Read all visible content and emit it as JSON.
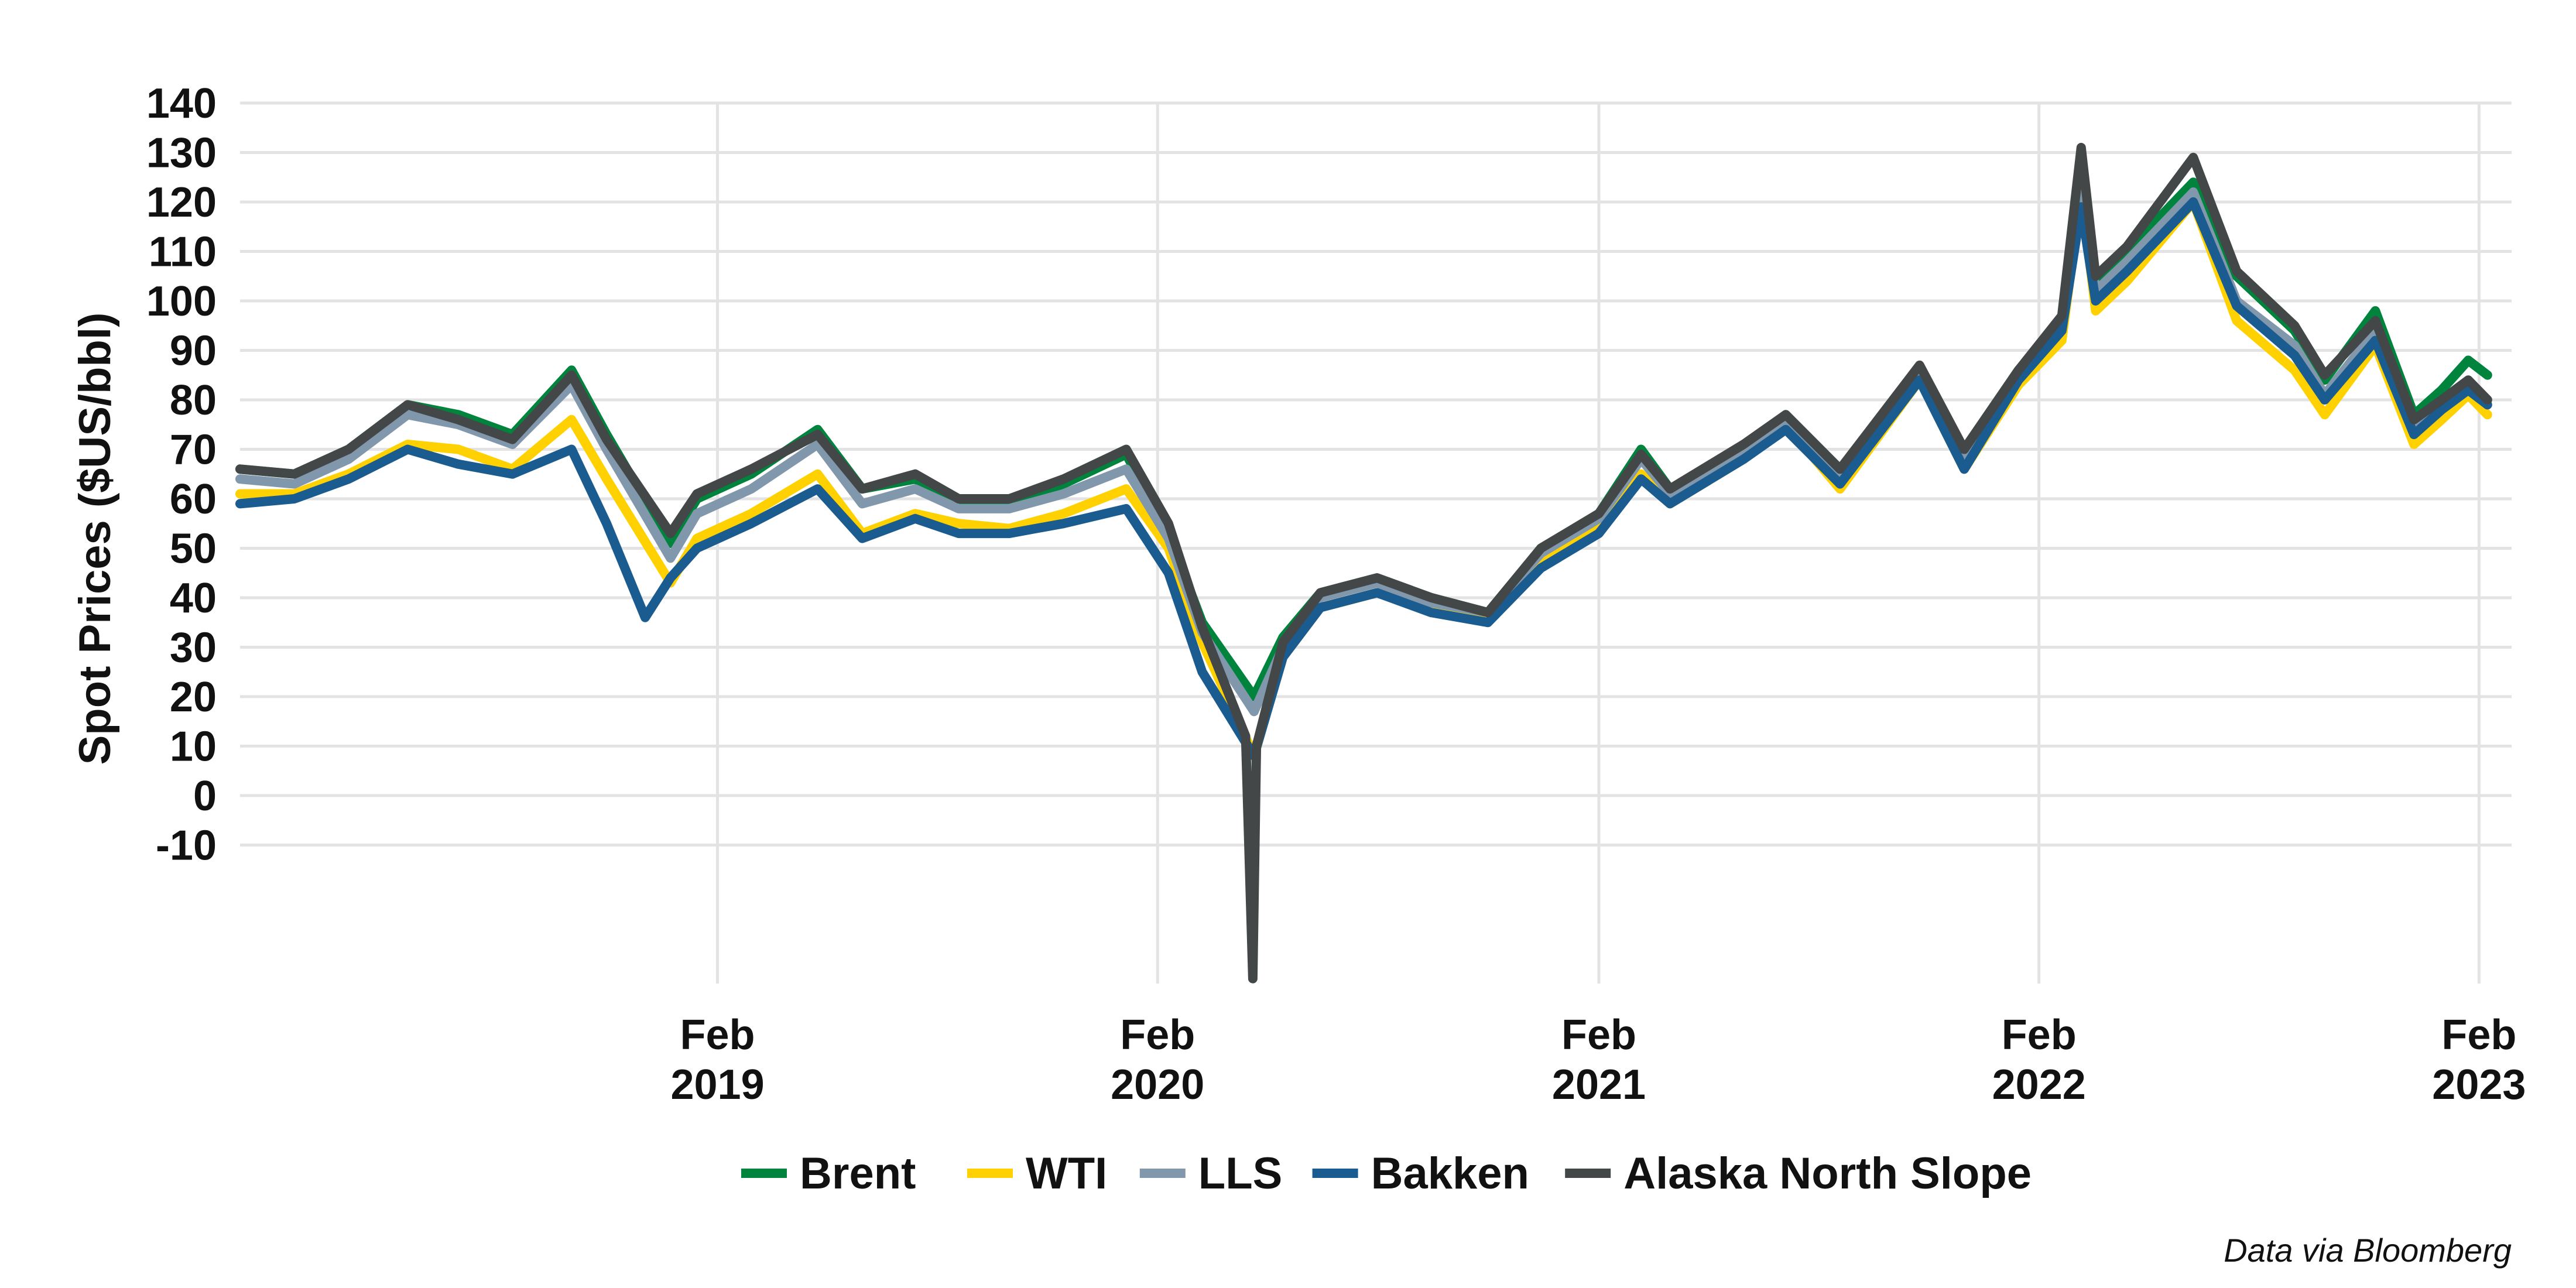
{
  "chart_data": {
    "type": "line",
    "title": "",
    "ylabel": "Spot Prices ($US/bbl)",
    "xlabel": "",
    "ylim": [
      -38,
      140
    ],
    "y_ticks": [
      140,
      130,
      120,
      110,
      100,
      90,
      80,
      70,
      60,
      50,
      40,
      30,
      20,
      10,
      0,
      -10
    ],
    "x_range": [
      "2018-01-01",
      "2023-02-28"
    ],
    "x_ticks": [
      {
        "date": "2019-02-01",
        "label": [
          "Feb",
          "2019"
        ]
      },
      {
        "date": "2020-02-01",
        "label": [
          "Feb",
          "2020"
        ]
      },
      {
        "date": "2021-02-01",
        "label": [
          "Feb",
          "2021"
        ]
      },
      {
        "date": "2022-02-01",
        "label": [
          "Feb",
          "2022"
        ]
      },
      {
        "date": "2023-02-01",
        "label": [
          "Feb",
          "2023"
        ]
      }
    ],
    "grid": true,
    "legend_position": "bottom",
    "caption": "Data via Bloomberg",
    "series": [
      {
        "name": "Brent",
        "color": "#00843D",
        "points": [
          [
            "2018-01-01",
            66
          ],
          [
            "2018-02-15",
            65
          ],
          [
            "2018-04-01",
            70
          ],
          [
            "2018-05-20",
            79
          ],
          [
            "2018-07-01",
            77
          ],
          [
            "2018-08-15",
            73
          ],
          [
            "2018-10-03",
            86
          ],
          [
            "2018-11-01",
            73
          ],
          [
            "2018-12-24",
            51
          ],
          [
            "2019-01-15",
            60
          ],
          [
            "2019-03-01",
            65
          ],
          [
            "2019-04-25",
            74
          ],
          [
            "2019-06-01",
            62
          ],
          [
            "2019-07-15",
            64
          ],
          [
            "2019-08-20",
            59
          ],
          [
            "2019-10-01",
            59
          ],
          [
            "2019-11-15",
            63
          ],
          [
            "2020-01-06",
            69
          ],
          [
            "2020-02-10",
            53
          ],
          [
            "2020-03-09",
            35
          ],
          [
            "2020-04-21",
            20
          ],
          [
            "2020-05-15",
            32
          ],
          [
            "2020-06-15",
            41
          ],
          [
            "2020-08-01",
            44
          ],
          [
            "2020-09-15",
            40
          ],
          [
            "2020-11-01",
            37
          ],
          [
            "2020-12-15",
            50
          ],
          [
            "2021-02-01",
            57
          ],
          [
            "2021-03-08",
            70
          ],
          [
            "2021-04-01",
            62
          ],
          [
            "2021-06-01",
            70
          ],
          [
            "2021-07-06",
            77
          ],
          [
            "2021-08-20",
            66
          ],
          [
            "2021-10-25",
            86
          ],
          [
            "2021-12-01",
            70
          ],
          [
            "2022-01-15",
            86
          ],
          [
            "2022-02-20",
            96
          ],
          [
            "2022-03-08",
            128
          ],
          [
            "2022-03-20",
            104
          ],
          [
            "2022-04-15",
            110
          ],
          [
            "2022-06-09",
            124
          ],
          [
            "2022-07-15",
            105
          ],
          [
            "2022-09-01",
            94
          ],
          [
            "2022-09-26",
            84
          ],
          [
            "2022-11-07",
            98
          ],
          [
            "2022-12-09",
            77
          ],
          [
            "2023-01-01",
            82
          ],
          [
            "2023-01-23",
            88
          ],
          [
            "2023-02-08",
            85
          ]
        ]
      },
      {
        "name": "WTI",
        "color": "#FFD100",
        "points": [
          [
            "2018-01-01",
            61
          ],
          [
            "2018-02-15",
            61
          ],
          [
            "2018-04-01",
            65
          ],
          [
            "2018-05-20",
            71
          ],
          [
            "2018-07-01",
            70
          ],
          [
            "2018-08-15",
            66
          ],
          [
            "2018-10-03",
            76
          ],
          [
            "2018-11-01",
            64
          ],
          [
            "2018-12-24",
            43
          ],
          [
            "2019-01-15",
            52
          ],
          [
            "2019-03-01",
            57
          ],
          [
            "2019-04-25",
            65
          ],
          [
            "2019-06-01",
            53
          ],
          [
            "2019-07-15",
            57
          ],
          [
            "2019-08-20",
            55
          ],
          [
            "2019-10-01",
            54
          ],
          [
            "2019-11-15",
            57
          ],
          [
            "2020-01-06",
            62
          ],
          [
            "2020-02-10",
            50
          ],
          [
            "2020-03-09",
            31
          ],
          [
            "2020-04-21",
            8
          ],
          [
            "2020-05-15",
            28
          ],
          [
            "2020-06-15",
            38
          ],
          [
            "2020-08-01",
            41
          ],
          [
            "2020-09-15",
            38
          ],
          [
            "2020-11-01",
            36
          ],
          [
            "2020-12-15",
            47
          ],
          [
            "2021-02-01",
            54
          ],
          [
            "2021-03-08",
            65
          ],
          [
            "2021-04-01",
            59
          ],
          [
            "2021-06-01",
            68
          ],
          [
            "2021-07-06",
            75
          ],
          [
            "2021-08-20",
            62
          ],
          [
            "2021-10-25",
            84
          ],
          [
            "2021-12-01",
            66
          ],
          [
            "2022-01-15",
            83
          ],
          [
            "2022-02-20",
            92
          ],
          [
            "2022-03-08",
            122
          ],
          [
            "2022-03-20",
            98
          ],
          [
            "2022-04-15",
            104
          ],
          [
            "2022-06-09",
            120
          ],
          [
            "2022-07-15",
            96
          ],
          [
            "2022-09-01",
            86
          ],
          [
            "2022-09-26",
            77
          ],
          [
            "2022-11-07",
            91
          ],
          [
            "2022-12-09",
            71
          ],
          [
            "2023-01-01",
            76
          ],
          [
            "2023-01-23",
            81
          ],
          [
            "2023-02-08",
            77
          ]
        ]
      },
      {
        "name": "LLS",
        "color": "#8097AC",
        "points": [
          [
            "2018-01-01",
            64
          ],
          [
            "2018-02-15",
            63
          ],
          [
            "2018-04-01",
            68
          ],
          [
            "2018-05-20",
            77
          ],
          [
            "2018-07-01",
            75
          ],
          [
            "2018-08-15",
            71
          ],
          [
            "2018-10-03",
            83
          ],
          [
            "2018-11-01",
            70
          ],
          [
            "2018-12-24",
            48
          ],
          [
            "2019-01-15",
            57
          ],
          [
            "2019-03-01",
            62
          ],
          [
            "2019-04-25",
            71
          ],
          [
            "2019-06-01",
            59
          ],
          [
            "2019-07-15",
            62
          ],
          [
            "2019-08-20",
            58
          ],
          [
            "2019-10-01",
            58
          ],
          [
            "2019-11-15",
            61
          ],
          [
            "2020-01-06",
            66
          ],
          [
            "2020-02-10",
            52
          ],
          [
            "2020-03-09",
            33
          ],
          [
            "2020-04-21",
            17
          ],
          [
            "2020-05-15",
            30
          ],
          [
            "2020-06-15",
            40
          ],
          [
            "2020-08-01",
            43
          ],
          [
            "2020-09-15",
            39
          ],
          [
            "2020-11-01",
            37
          ],
          [
            "2020-12-15",
            49
          ],
          [
            "2021-02-01",
            56
          ],
          [
            "2021-03-08",
            68
          ],
          [
            "2021-04-01",
            61
          ],
          [
            "2021-06-01",
            70
          ],
          [
            "2021-07-06",
            76
          ],
          [
            "2021-08-20",
            65
          ],
          [
            "2021-10-25",
            86
          ],
          [
            "2021-12-01",
            69
          ],
          [
            "2022-01-15",
            85
          ],
          [
            "2022-02-20",
            94
          ],
          [
            "2022-03-08",
            126
          ],
          [
            "2022-03-20",
            102
          ],
          [
            "2022-04-15",
            108
          ],
          [
            "2022-06-09",
            122
          ],
          [
            "2022-07-15",
            100
          ],
          [
            "2022-09-01",
            91
          ],
          [
            "2022-09-26",
            81
          ],
          [
            "2022-11-07",
            94
          ],
          [
            "2022-12-09",
            74
          ],
          [
            "2023-01-01",
            79
          ],
          [
            "2023-01-23",
            84
          ],
          [
            "2023-02-08",
            80
          ]
        ]
      },
      {
        "name": "Bakken",
        "color": "#1B5C90",
        "points": [
          [
            "2018-01-01",
            59
          ],
          [
            "2018-02-15",
            60
          ],
          [
            "2018-04-01",
            64
          ],
          [
            "2018-05-20",
            70
          ],
          [
            "2018-07-01",
            67
          ],
          [
            "2018-08-15",
            65
          ],
          [
            "2018-10-03",
            70
          ],
          [
            "2018-11-01",
            55
          ],
          [
            "2018-12-03",
            36
          ],
          [
            "2018-12-24",
            44
          ],
          [
            "2019-01-15",
            50
          ],
          [
            "2019-03-01",
            55
          ],
          [
            "2019-04-25",
            62
          ],
          [
            "2019-06-01",
            52
          ],
          [
            "2019-07-15",
            56
          ],
          [
            "2019-08-20",
            53
          ],
          [
            "2019-10-01",
            53
          ],
          [
            "2019-11-15",
            55
          ],
          [
            "2020-01-06",
            58
          ],
          [
            "2020-02-10",
            45
          ],
          [
            "2020-03-09",
            25
          ],
          [
            "2020-04-21",
            8
          ],
          [
            "2020-05-15",
            28
          ],
          [
            "2020-06-15",
            38
          ],
          [
            "2020-08-01",
            41
          ],
          [
            "2020-09-15",
            37
          ],
          [
            "2020-11-01",
            35
          ],
          [
            "2020-12-15",
            46
          ],
          [
            "2021-02-01",
            53
          ],
          [
            "2021-03-08",
            64
          ],
          [
            "2021-04-01",
            59
          ],
          [
            "2021-06-01",
            68
          ],
          [
            "2021-07-06",
            74
          ],
          [
            "2021-08-20",
            63
          ],
          [
            "2021-10-25",
            84
          ],
          [
            "2021-12-01",
            66
          ],
          [
            "2022-01-15",
            84
          ],
          [
            "2022-02-20",
            94
          ],
          [
            "2022-03-08",
            119
          ],
          [
            "2022-03-20",
            100
          ],
          [
            "2022-04-15",
            106
          ],
          [
            "2022-06-09",
            120
          ],
          [
            "2022-07-15",
            99
          ],
          [
            "2022-09-01",
            89
          ],
          [
            "2022-09-26",
            80
          ],
          [
            "2022-11-07",
            92
          ],
          [
            "2022-12-09",
            73
          ],
          [
            "2023-01-01",
            78
          ],
          [
            "2023-01-23",
            82
          ],
          [
            "2023-02-08",
            79
          ]
        ]
      },
      {
        "name": "Alaska North Slope",
        "color": "#444748",
        "points": [
          [
            "2018-01-01",
            66
          ],
          [
            "2018-02-15",
            65
          ],
          [
            "2018-04-01",
            70
          ],
          [
            "2018-05-20",
            79
          ],
          [
            "2018-07-01",
            76
          ],
          [
            "2018-08-15",
            72
          ],
          [
            "2018-10-03",
            85
          ],
          [
            "2018-11-01",
            72
          ],
          [
            "2018-12-24",
            53
          ],
          [
            "2019-01-15",
            61
          ],
          [
            "2019-03-01",
            66
          ],
          [
            "2019-04-25",
            73
          ],
          [
            "2019-06-01",
            62
          ],
          [
            "2019-07-15",
            65
          ],
          [
            "2019-08-20",
            60
          ],
          [
            "2019-10-01",
            60
          ],
          [
            "2019-11-15",
            64
          ],
          [
            "2020-01-06",
            70
          ],
          [
            "2020-02-10",
            55
          ],
          [
            "2020-03-09",
            34
          ],
          [
            "2020-04-14",
            12
          ],
          [
            "2020-04-20",
            -37
          ],
          [
            "2020-04-23",
            10
          ],
          [
            "2020-05-15",
            31
          ],
          [
            "2020-06-15",
            41
          ],
          [
            "2020-08-01",
            44
          ],
          [
            "2020-09-15",
            40
          ],
          [
            "2020-11-01",
            37
          ],
          [
            "2020-12-15",
            50
          ],
          [
            "2021-02-01",
            57
          ],
          [
            "2021-03-08",
            69
          ],
          [
            "2021-04-01",
            62
          ],
          [
            "2021-06-01",
            71
          ],
          [
            "2021-07-06",
            77
          ],
          [
            "2021-08-20",
            66
          ],
          [
            "2021-10-25",
            87
          ],
          [
            "2021-12-01",
            70
          ],
          [
            "2022-01-15",
            86
          ],
          [
            "2022-02-20",
            97
          ],
          [
            "2022-03-08",
            131
          ],
          [
            "2022-03-20",
            105
          ],
          [
            "2022-04-15",
            111
          ],
          [
            "2022-06-09",
            129
          ],
          [
            "2022-07-15",
            106
          ],
          [
            "2022-09-01",
            95
          ],
          [
            "2022-09-26",
            85
          ],
          [
            "2022-11-07",
            96
          ],
          [
            "2022-12-09",
            76
          ],
          [
            "2023-01-01",
            80
          ],
          [
            "2023-01-23",
            84
          ],
          [
            "2023-02-08",
            80
          ]
        ]
      }
    ]
  }
}
